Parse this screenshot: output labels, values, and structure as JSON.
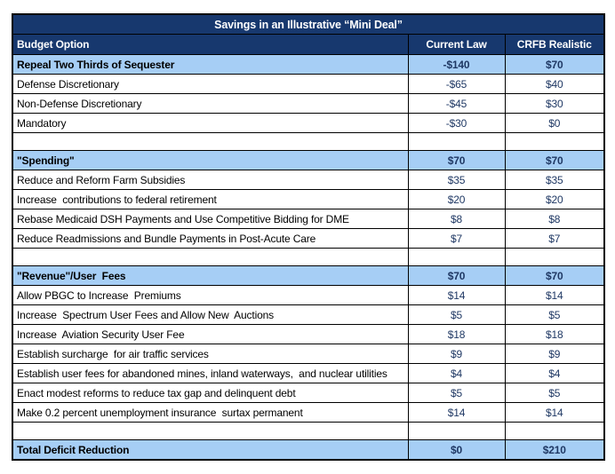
{
  "chart_data": {
    "type": "table",
    "title": "Savings in an Illustrative “Mini Deal”",
    "columns": [
      "Budget Option",
      "Current Law",
      "CRFB Realistic"
    ],
    "rows": [
      {
        "type": "section",
        "label": "Repeal Two Thirds of Sequester",
        "values": [
          "-$140",
          "$70"
        ],
        "numeric": [
          -140,
          70
        ]
      },
      {
        "type": "item",
        "label": "Defense Discretionary",
        "values": [
          "-$65",
          "$40"
        ],
        "numeric": [
          -65,
          40
        ]
      },
      {
        "type": "item",
        "label": "Non-Defense Discretionary",
        "values": [
          "-$45",
          "$30"
        ],
        "numeric": [
          -45,
          30
        ]
      },
      {
        "type": "item",
        "label": "Mandatory",
        "values": [
          "-$30",
          "$0"
        ],
        "numeric": [
          -30,
          0
        ]
      },
      {
        "type": "spacer",
        "label": "",
        "values": [
          "",
          ""
        ],
        "numeric": null
      },
      {
        "type": "section",
        "label": "\"Spending\"",
        "values": [
          "$70",
          "$70"
        ],
        "numeric": [
          70,
          70
        ]
      },
      {
        "type": "item",
        "label": "Reduce and Reform Farm Subsidies",
        "values": [
          "$35",
          "$35"
        ],
        "numeric": [
          35,
          35
        ]
      },
      {
        "type": "item",
        "label": "Increase  contributions to federal retirement",
        "values": [
          "$20",
          "$20"
        ],
        "numeric": [
          20,
          20
        ]
      },
      {
        "type": "item",
        "label": "Rebase Medicaid DSH Payments and Use Competitive Bidding for DME",
        "values": [
          "$8",
          "$8"
        ],
        "numeric": [
          8,
          8
        ]
      },
      {
        "type": "item",
        "label": "Reduce Readmissions and Bundle Payments in Post-Acute Care",
        "values": [
          "$7",
          "$7"
        ],
        "numeric": [
          7,
          7
        ]
      },
      {
        "type": "spacer",
        "label": "",
        "values": [
          "",
          ""
        ],
        "numeric": null
      },
      {
        "type": "section",
        "label": "\"Revenue\"/User  Fees",
        "values": [
          "$70",
          "$70"
        ],
        "numeric": [
          70,
          70
        ]
      },
      {
        "type": "item",
        "label": "Allow PBGC to Increase  Premiums",
        "values": [
          "$14",
          "$14"
        ],
        "numeric": [
          14,
          14
        ]
      },
      {
        "type": "item",
        "label": "Increase  Spectrum User Fees and Allow New  Auctions",
        "values": [
          "$5",
          "$5"
        ],
        "numeric": [
          5,
          5
        ]
      },
      {
        "type": "item",
        "label": "Increase  Aviation Security User Fee",
        "values": [
          "$18",
          "$18"
        ],
        "numeric": [
          18,
          18
        ]
      },
      {
        "type": "item",
        "label": "Establish surcharge  for air traffic services",
        "values": [
          "$9",
          "$9"
        ],
        "numeric": [
          9,
          9
        ]
      },
      {
        "type": "item",
        "label": "Establish user fees for abandoned mines, inland waterways,  and nuclear utilities",
        "values": [
          "$4",
          "$4"
        ],
        "numeric": [
          4,
          4
        ]
      },
      {
        "type": "item",
        "label": "Enact modest reforms to reduce tax gap and delinquent debt",
        "values": [
          "$5",
          "$5"
        ],
        "numeric": [
          5,
          5
        ]
      },
      {
        "type": "item",
        "label": "Make 0.2 percent unemployment insurance  surtax permanent",
        "values": [
          "$14",
          "$14"
        ],
        "numeric": [
          14,
          14
        ]
      },
      {
        "type": "spacer",
        "label": "",
        "values": [
          "",
          ""
        ],
        "numeric": null
      },
      {
        "type": "section",
        "label": "Total Deficit Reduction",
        "values": [
          "$0",
          "$210"
        ],
        "numeric": [
          0,
          210
        ]
      }
    ]
  },
  "colors": {
    "header_navy": "#17386E",
    "highlight_blue": "#A6CEF5",
    "number_text": "#1F3864",
    "border": "#000000"
  }
}
